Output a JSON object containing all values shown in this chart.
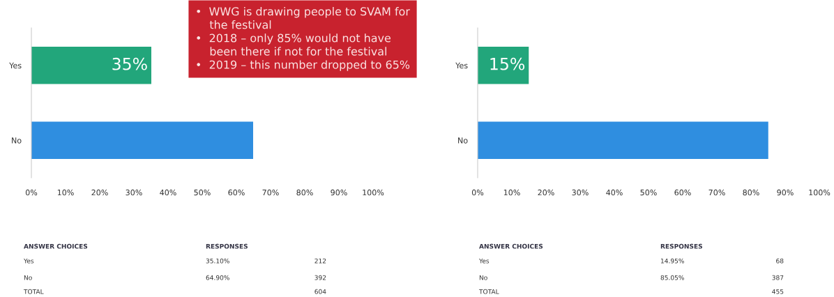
{
  "chart_data": [
    {
      "type": "bar",
      "orientation": "horizontal",
      "categories": [
        "Yes",
        "No"
      ],
      "values": [
        35.1,
        64.9
      ],
      "colors": [
        "#22a67b",
        "#2f8ee0"
      ],
      "value_labels": [
        "35%",
        null
      ],
      "xlim": [
        0,
        100
      ],
      "xticks": [
        {
          "value": 0,
          "label": "0%"
        },
        {
          "value": 10,
          "label": "10%"
        },
        {
          "value": 20,
          "label": "20%"
        },
        {
          "value": 30,
          "label": "30%"
        },
        {
          "value": 40,
          "label": "40%"
        },
        {
          "value": 50,
          "label": "50%"
        },
        {
          "value": 60,
          "label": "60%"
        },
        {
          "value": 70,
          "label": "70%"
        },
        {
          "value": 80,
          "label": "80%"
        },
        {
          "value": 90,
          "label": "90%"
        },
        {
          "value": 100,
          "label": "100%"
        }
      ],
      "annotations": [
        "ANSWER CHOICES",
        "RESPONSES",
        "Yes",
        "35.10%",
        "212",
        "No",
        "64.90%",
        "392",
        "TOTAL",
        "604",
        "•  WWG is drawing people to SVAM for\n    the festival\n•  2018 – only 85% would not have\n    been there if not for the festival\n•  2019 – this number dropped to 65%"
      ]
    },
    {
      "type": "bar",
      "orientation": "horizontal",
      "categories": [
        "Yes",
        "No"
      ],
      "values": [
        14.95,
        85.05
      ],
      "colors": [
        "#22a67b",
        "#2f8ee0"
      ],
      "value_labels": [
        "15%",
        null
      ],
      "xlim": [
        0,
        100
      ],
      "xticks": [
        {
          "value": 0,
          "label": "0%"
        },
        {
          "value": 10,
          "label": "10%"
        },
        {
          "value": 20,
          "label": "20%"
        },
        {
          "value": 30,
          "label": "30%"
        },
        {
          "value": 40,
          "label": "40%"
        },
        {
          "value": 50,
          "label": "50%"
        },
        {
          "value": 60,
          "label": "60%"
        },
        {
          "value": 70,
          "label": "70%"
        },
        {
          "value": 80,
          "label": "80%"
        },
        {
          "value": 90,
          "label": "90%"
        },
        {
          "value": 100,
          "label": "100%"
        }
      ],
      "annotations": [
        "ANSWER CHOICES",
        "RESPONSES",
        "Yes",
        "14.95%",
        "68",
        "No",
        "85.05%",
        "387",
        "TOTAL",
        "455"
      ]
    }
  ]
}
